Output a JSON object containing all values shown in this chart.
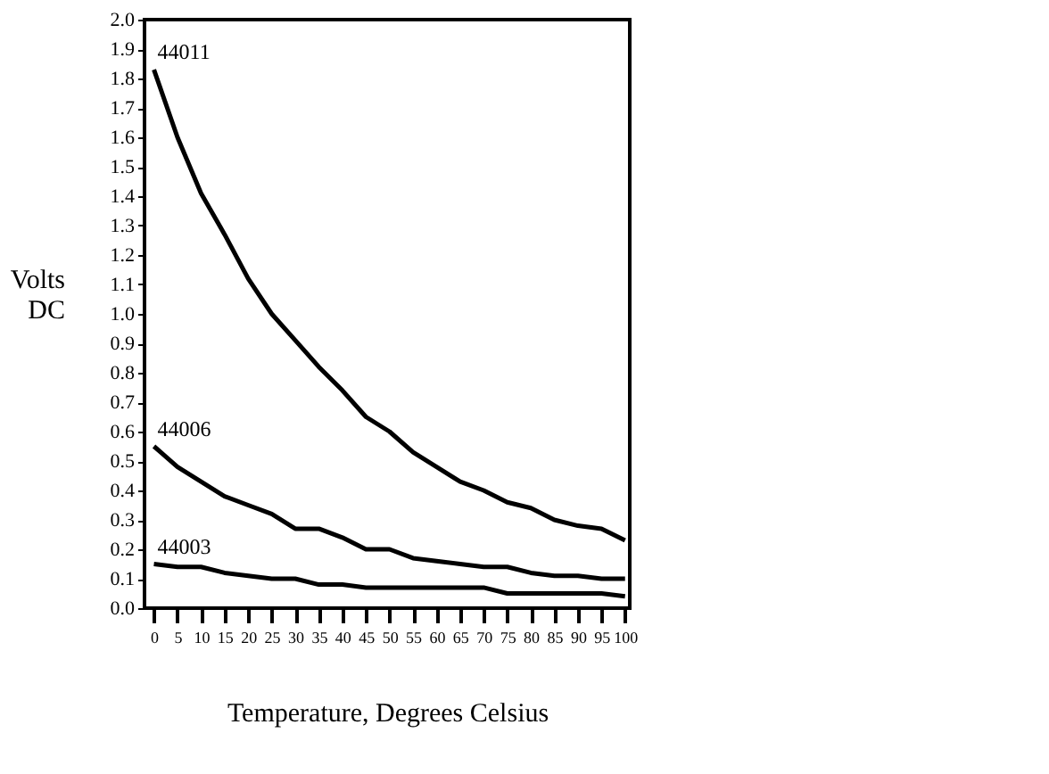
{
  "chart_data": {
    "type": "line",
    "xlabel": "Temperature, Degrees Celsius",
    "ylabel": "Volts DC",
    "x": [
      0,
      5,
      10,
      15,
      20,
      25,
      30,
      35,
      40,
      45,
      50,
      55,
      60,
      65,
      70,
      75,
      80,
      85,
      90,
      95,
      100
    ],
    "series": [
      {
        "name": "44011",
        "color": "#000000",
        "values": [
          1.83,
          1.6,
          1.41,
          1.27,
          1.12,
          1.0,
          0.91,
          0.82,
          0.74,
          0.65,
          0.6,
          0.53,
          0.48,
          0.43,
          0.4,
          0.36,
          0.34,
          0.3,
          0.28,
          0.27,
          0.23
        ]
      },
      {
        "name": "44006",
        "color": "#000000",
        "values": [
          0.55,
          0.48,
          0.43,
          0.38,
          0.35,
          0.32,
          0.27,
          0.27,
          0.24,
          0.2,
          0.2,
          0.17,
          0.16,
          0.15,
          0.14,
          0.14,
          0.12,
          0.11,
          0.11,
          0.1,
          0.1
        ]
      },
      {
        "name": "44003",
        "color": "#000000",
        "values": [
          0.15,
          0.14,
          0.14,
          0.12,
          0.11,
          0.1,
          0.1,
          0.08,
          0.08,
          0.07,
          0.07,
          0.07,
          0.07,
          0.07,
          0.07,
          0.05,
          0.05,
          0.05,
          0.05,
          0.05,
          0.04
        ]
      }
    ],
    "xlim": [
      -2,
      101
    ],
    "xticks": [
      0,
      5,
      10,
      15,
      20,
      25,
      30,
      35,
      40,
      45,
      50,
      55,
      60,
      65,
      70,
      75,
      80,
      85,
      90,
      95,
      100
    ],
    "ylim": [
      0,
      2.0
    ],
    "yticks": [
      {
        "value": 0,
        "label": "0.0"
      },
      {
        "value": 0.1,
        "label": "0.1"
      },
      {
        "value": 0.2,
        "label": "0.2"
      },
      {
        "value": 0.3,
        "label": "0.3"
      },
      {
        "value": 0.4,
        "label": "0.4"
      },
      {
        "value": 0.5,
        "label": "0.5"
      },
      {
        "value": 0.6,
        "label": "0.6"
      },
      {
        "value": 0.7,
        "label": "0.7"
      },
      {
        "value": 0.8,
        "label": "0.8"
      },
      {
        "value": 0.9,
        "label": "0.9"
      },
      {
        "value": 1.0,
        "label": "1.0"
      },
      {
        "value": 1.1,
        "label": "1.1"
      },
      {
        "value": 1.2,
        "label": "1.2"
      },
      {
        "value": 1.3,
        "label": "1.3"
      },
      {
        "value": 1.4,
        "label": "1.4"
      },
      {
        "value": 1.5,
        "label": "1.5"
      },
      {
        "value": 1.6,
        "label": "1.6"
      },
      {
        "value": 1.7,
        "label": "1.7"
      },
      {
        "value": 1.8,
        "label": "1.8"
      },
      {
        "value": 1.9,
        "label": "1.9"
      },
      {
        "value": 2.0,
        "label": "2.0"
      }
    ],
    "grid": false,
    "legend": false,
    "line_style": "solid",
    "marker": "none"
  }
}
